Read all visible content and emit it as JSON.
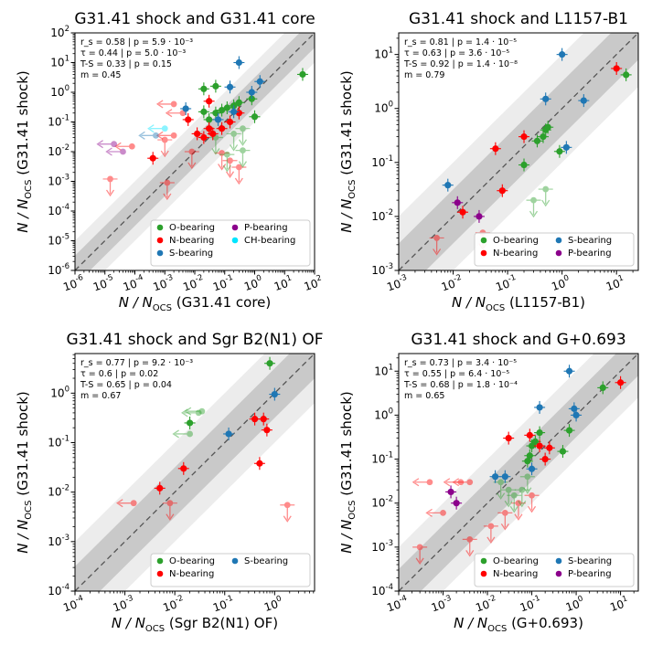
{
  "chart_data": [
    {
      "type": "scatter",
      "title": "G31.41 shock and G31.41 core",
      "xlabel_ref": "G31.41 core",
      "ylabel_ref": "G31.41 shock",
      "xlim_exp": [
        -6,
        2
      ],
      "ylim_exp": [
        -6,
        2
      ],
      "x_ticks": [
        "-6",
        "-5",
        "-4",
        "-3",
        "-2",
        "-1",
        "0",
        "1",
        "2"
      ],
      "y_ticks": [
        "-6",
        "-5",
        "-4",
        "-3",
        "-2",
        "-1",
        "0",
        "1",
        "2"
      ],
      "stats": [
        "r_s = 0.58  |  p = 5.9 · 10⁻³",
        "τ = 0.44  |  p = 5.0 · 10⁻³",
        "T-S = 0.33  |  p = 0.15",
        "m = 0.45"
      ],
      "legend": [
        {
          "label": "O-bearing",
          "color": "#2ca02c"
        },
        {
          "label": "N-bearing",
          "color": "#ff0000"
        },
        {
          "label": "S-bearing",
          "color": "#1f77b4"
        },
        {
          "label": "P-bearing",
          "color": "#8b008b"
        },
        {
          "label": "CH-bearing",
          "color": "#00e5ff"
        }
      ],
      "legend_cols": 2,
      "series": [
        {
          "name": "O-bearing",
          "color": "#2ca02c",
          "points": [
            [
              0.02,
              0.22
            ],
            [
              0.02,
              1.3
            ],
            [
              0.03,
              0.12
            ],
            [
              0.05,
              0.2
            ],
            [
              0.08,
              0.25
            ],
            [
              0.12,
              0.3
            ],
            [
              0.2,
              0.35
            ],
            [
              0.3,
              0.45
            ],
            [
              0.8,
              0.6
            ],
            [
              1.0,
              0.15
            ],
            [
              40,
              4.0
            ],
            [
              0.05,
              1.6
            ]
          ]
        },
        {
          "name": "N-bearing",
          "color": "#ff0000",
          "points": [
            [
              0.012,
              0.04
            ],
            [
              0.02,
              0.03
            ],
            [
              0.03,
              0.06
            ],
            [
              0.04,
              0.04
            ],
            [
              0.08,
              0.06
            ],
            [
              0.15,
              0.1
            ],
            [
              0.3,
              0.2
            ],
            [
              0.006,
              0.12
            ],
            [
              0.0004,
              0.006
            ],
            [
              0.03,
              0.5
            ]
          ]
        },
        {
          "name": "S-bearing",
          "color": "#1f77b4",
          "points": [
            [
              0.005,
              0.28
            ],
            [
              0.06,
              0.12
            ],
            [
              0.2,
              0.22
            ],
            [
              0.3,
              10
            ],
            [
              0.8,
              1.0
            ],
            [
              0.15,
              1.5
            ],
            [
              1.5,
              2.3
            ]
          ]
        }
      ],
      "upper_limits": [
        {
          "color": "#ff0000",
          "points": [
            [
              1.5e-05,
              0.0012
            ],
            [
              0.0012,
              0.0009
            ],
            [
              0.001,
              0.025
            ],
            [
              0.08,
              0.009
            ],
            [
              0.15,
              0.005
            ],
            [
              0.3,
              0.003
            ],
            [
              0.008,
              0.01
            ]
          ]
        },
        {
          "color": "#2ca02c",
          "points": [
            [
              0.05,
              0.03
            ],
            [
              0.12,
              0.008
            ],
            [
              0.2,
              0.04
            ],
            [
              0.4,
              0.011
            ],
            [
              0.4,
              0.06
            ]
          ]
        }
      ],
      "left_limits": [
        {
          "color": "#ff0000",
          "points": [
            [
              0.002,
              0.4
            ],
            [
              0.004,
              0.2
            ],
            [
              0.002,
              0.035
            ],
            [
              8e-05,
              0.015
            ]
          ]
        },
        {
          "color": "#8b008b",
          "points": [
            [
              2e-05,
              0.018
            ],
            [
              4e-05,
              0.01
            ]
          ]
        },
        {
          "color": "#00e5ff",
          "points": [
            [
              0.001,
              0.06
            ]
          ]
        },
        {
          "color": "#1f77b4",
          "points": [
            [
              0.0005,
              0.035
            ]
          ]
        }
      ]
    },
    {
      "type": "scatter",
      "title": "G31.41 shock and L1157-B1",
      "xlabel_ref": "L1157-B1",
      "ylabel_ref": "G31.41 shock",
      "xlim_exp": [
        -3,
        1.4
      ],
      "ylim_exp": [
        -3,
        1.4
      ],
      "x_ticks": [
        "-3",
        "-2",
        "-1",
        "0",
        "1"
      ],
      "y_ticks": [
        "-3",
        "-2",
        "-1",
        "0",
        "1"
      ],
      "stats": [
        "r_s = 0.81  |  p = 1.4 · 10⁻⁵",
        "τ = 0.63  |  p = 3.6 · 10⁻⁵",
        "T-S = 0.92  |  p = 1.4 · 10⁻⁸",
        "m = 0.79"
      ],
      "legend": [
        {
          "label": "O-bearing",
          "color": "#2ca02c"
        },
        {
          "label": "N-bearing",
          "color": "#ff0000"
        },
        {
          "label": "S-bearing",
          "color": "#1f77b4"
        },
        {
          "label": "P-bearing",
          "color": "#8b008b"
        }
      ],
      "legend_cols": 2,
      "series": [
        {
          "name": "O-bearing",
          "color": "#2ca02c",
          "points": [
            [
              0.2,
              0.09
            ],
            [
              0.35,
              0.25
            ],
            [
              0.45,
              0.3
            ],
            [
              0.5,
              0.4
            ],
            [
              0.55,
              0.45
            ],
            [
              0.9,
              0.16
            ],
            [
              15,
              4.2
            ]
          ]
        },
        {
          "name": "N-bearing",
          "color": "#ff0000",
          "points": [
            [
              0.06,
              0.18
            ],
            [
              0.08,
              0.03
            ],
            [
              0.2,
              0.3
            ],
            [
              0.015,
              0.012
            ],
            [
              10,
              5.5
            ]
          ]
        },
        {
          "name": "S-bearing",
          "color": "#1f77b4",
          "points": [
            [
              0.008,
              0.038
            ],
            [
              0.5,
              1.5
            ],
            [
              1.0,
              10
            ],
            [
              1.2,
              0.19
            ],
            [
              2.5,
              1.4
            ]
          ]
        },
        {
          "name": "P-bearing",
          "color": "#8b008b",
          "points": [
            [
              0.012,
              0.018
            ],
            [
              0.03,
              0.01
            ]
          ]
        }
      ],
      "upper_limits": [
        {
          "color": "#ff0000",
          "points": [
            [
              0.005,
              0.004
            ],
            [
              0.035,
              0.005
            ]
          ]
        },
        {
          "color": "#2ca02c",
          "points": [
            [
              0.3,
              0.02
            ],
            [
              0.5,
              0.032
            ]
          ]
        }
      ],
      "left_limits": []
    },
    {
      "type": "scatter",
      "title": "G31.41 shock and Sgr B2(N1) OF",
      "xlabel_ref": "Sgr B2(N1) OF",
      "ylabel_ref": "G31.41 shock",
      "xlim_exp": [
        -4,
        0.8
      ],
      "ylim_exp": [
        -4,
        0.8
      ],
      "x_ticks": [
        "-4",
        "-3",
        "-2",
        "-1",
        "0"
      ],
      "y_ticks": [
        "-4",
        "-3",
        "-2",
        "-1",
        "0"
      ],
      "stats": [
        "r_s = 0.77  |  p = 9.2 · 10⁻³",
        "τ = 0.6  |  p = 0.02",
        "T-S = 0.65  |  p = 0.04",
        "m = 0.67"
      ],
      "legend": [
        {
          "label": "O-bearing",
          "color": "#2ca02c"
        },
        {
          "label": "N-bearing",
          "color": "#ff0000"
        },
        {
          "label": "S-bearing",
          "color": "#1f77b4"
        }
      ],
      "legend_cols": 2,
      "series": [
        {
          "name": "O-bearing",
          "color": "#2ca02c",
          "points": [
            [
              0.8,
              4.0
            ],
            [
              0.02,
              0.25
            ]
          ]
        },
        {
          "name": "N-bearing",
          "color": "#ff0000",
          "points": [
            [
              0.4,
              0.3
            ],
            [
              0.7,
              0.18
            ],
            [
              0.6,
              0.3
            ],
            [
              0.5,
              0.038
            ],
            [
              0.015,
              0.03
            ],
            [
              0.005,
              0.012
            ]
          ]
        },
        {
          "name": "S-bearing",
          "color": "#1f77b4",
          "points": [
            [
              0.12,
              0.15
            ],
            [
              1.0,
              0.95
            ]
          ]
        }
      ],
      "upper_limits": [
        {
          "color": "#ff0000",
          "points": [
            [
              0.008,
              0.006
            ],
            [
              1.8,
              0.0055
            ]
          ]
        }
      ],
      "left_limits": [
        {
          "color": "#2ca02c",
          "points": [
            [
              0.03,
              0.4
            ],
            [
              0.035,
              0.43
            ],
            [
              0.02,
              0.15
            ]
          ]
        },
        {
          "color": "#ff0000",
          "points": [
            [
              0.0015,
              0.006
            ]
          ]
        }
      ]
    },
    {
      "type": "scatter",
      "title": "G31.41 shock and G+0.693",
      "xlabel_ref": "G+0.693",
      "ylabel_ref": "G31.41 shock",
      "xlim_exp": [
        -4,
        1.4
      ],
      "ylim_exp": [
        -4,
        1.4
      ],
      "x_ticks": [
        "-4",
        "-3",
        "-2",
        "-1",
        "0",
        "1"
      ],
      "y_ticks": [
        "-4",
        "-3",
        "-2",
        "-1",
        "0",
        "1"
      ],
      "stats": [
        "r_s = 0.73  |  p = 3.4 · 10⁻⁵",
        "τ = 0.55  |  p = 6.4 · 10⁻⁵",
        "T-S = 0.68  |  p = 1.8 · 10⁻⁴",
        "m = 0.65"
      ],
      "legend": [
        {
          "label": "O-bearing",
          "color": "#2ca02c"
        },
        {
          "label": "N-bearing",
          "color": "#ff0000"
        },
        {
          "label": "S-bearing",
          "color": "#1f77b4"
        },
        {
          "label": "P-bearing",
          "color": "#8b008b"
        }
      ],
      "legend_cols": 2,
      "series": [
        {
          "name": "O-bearing",
          "color": "#2ca02c",
          "points": [
            [
              0.08,
              0.09
            ],
            [
              0.1,
              0.2
            ],
            [
              0.12,
              0.25
            ],
            [
              0.15,
              0.4
            ],
            [
              0.5,
              0.15
            ],
            [
              0.7,
              0.45
            ],
            [
              4.0,
              4.2
            ],
            [
              0.09,
              0.12
            ]
          ]
        },
        {
          "name": "N-bearing",
          "color": "#ff0000",
          "points": [
            [
              0.03,
              0.3
            ],
            [
              0.09,
              0.35
            ],
            [
              0.15,
              0.2
            ],
            [
              0.2,
              0.1
            ],
            [
              0.25,
              0.18
            ],
            [
              10,
              5.5
            ]
          ]
        },
        {
          "name": "S-bearing",
          "color": "#1f77b4",
          "points": [
            [
              0.015,
              0.04
            ],
            [
              0.025,
              0.04
            ],
            [
              0.15,
              1.5
            ],
            [
              0.7,
              10
            ],
            [
              0.9,
              1.4
            ],
            [
              1.0,
              1.0
            ],
            [
              0.1,
              0.06
            ]
          ]
        },
        {
          "name": "P-bearing",
          "color": "#8b008b",
          "points": [
            [
              0.0015,
              0.018
            ],
            [
              0.002,
              0.01
            ]
          ]
        }
      ],
      "upper_limits": [
        {
          "color": "#ff0000",
          "points": [
            [
              0.0003,
              0.001
            ],
            [
              0.004,
              0.0015
            ],
            [
              0.012,
              0.003
            ],
            [
              0.025,
              0.006
            ],
            [
              0.05,
              0.01
            ],
            [
              0.1,
              0.015
            ]
          ]
        },
        {
          "color": "#2ca02c",
          "points": [
            [
              0.02,
              0.03
            ],
            [
              0.03,
              0.02
            ],
            [
              0.04,
              0.015
            ],
            [
              0.06,
              0.02
            ],
            [
              0.08,
              0.04
            ]
          ]
        }
      ],
      "left_limits": [
        {
          "color": "#ff0000",
          "points": [
            [
              0.0005,
              0.03
            ],
            [
              0.0025,
              0.03
            ],
            [
              0.004,
              0.03
            ],
            [
              0.001,
              0.006
            ]
          ]
        }
      ]
    }
  ],
  "axis_text": {
    "n_over_nocs": "N / N",
    "ocs_sub": "OCS",
    "ten": "10"
  }
}
